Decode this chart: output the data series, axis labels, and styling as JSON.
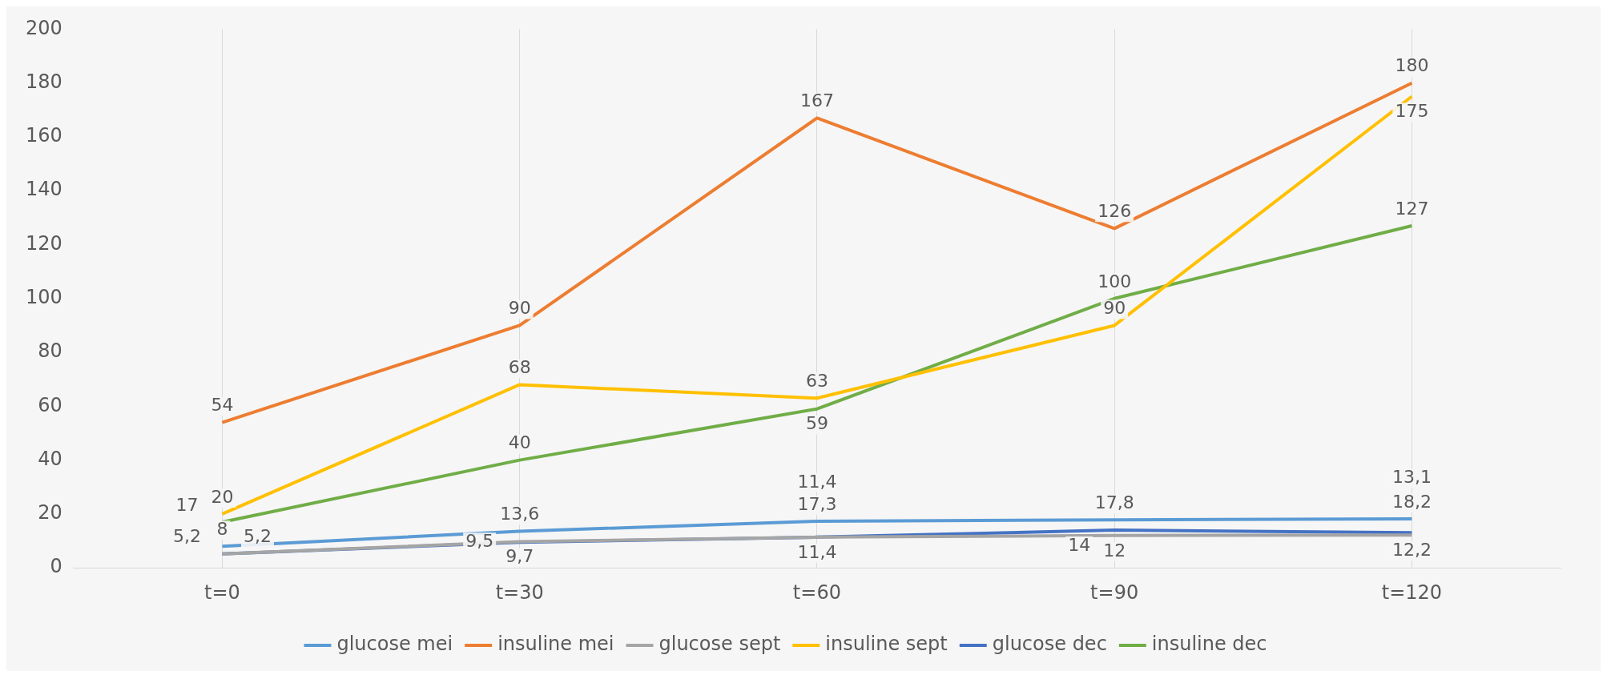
{
  "chart_data": {
    "type": "line",
    "categories": [
      "t=0",
      "t=30",
      "t=60",
      "t=90",
      "t=120"
    ],
    "series": [
      {
        "name": "glucose mei",
        "color": "#5b9bd5",
        "values": [
          8,
          13.6,
          17.3,
          17.8,
          18.2
        ],
        "value_labels": [
          "8",
          "13,6",
          "17,3",
          "17,8",
          "18,2"
        ]
      },
      {
        "name": "insuline mei",
        "color": "#ed7d31",
        "values": [
          54,
          90,
          167,
          126,
          180
        ],
        "value_labels": [
          "54",
          "90",
          "167",
          "126",
          "180"
        ]
      },
      {
        "name": "glucose sept",
        "color": "#a5a5a5",
        "values": [
          5.2,
          9.7,
          11.4,
          12,
          12.2
        ],
        "value_labels": [
          "5,2",
          "9,7",
          "11,4",
          "12",
          "12,2"
        ]
      },
      {
        "name": "insuline sept",
        "color": "#ffc000",
        "values": [
          20,
          68,
          63,
          90,
          175
        ],
        "value_labels": [
          "20",
          "68",
          "63",
          "90",
          "175"
        ]
      },
      {
        "name": "glucose dec",
        "color": "#4472c4",
        "values": [
          5.2,
          9.5,
          11.4,
          14,
          13.1
        ],
        "value_labels": [
          "5,2",
          "9,5",
          "11,4",
          "14",
          "13,1"
        ]
      },
      {
        "name": "insuline dec",
        "color": "#70ad47",
        "values": [
          17,
          40,
          59,
          100,
          127
        ],
        "value_labels": [
          "17",
          "40",
          "59",
          "100",
          "127"
        ]
      }
    ],
    "ylim": [
      0,
      200
    ],
    "yticks": [
      0,
      20,
      40,
      60,
      80,
      100,
      120,
      140,
      160,
      180,
      200
    ],
    "grid": "x",
    "legend": "bottom",
    "marker": "none",
    "line_style": "solid"
  }
}
